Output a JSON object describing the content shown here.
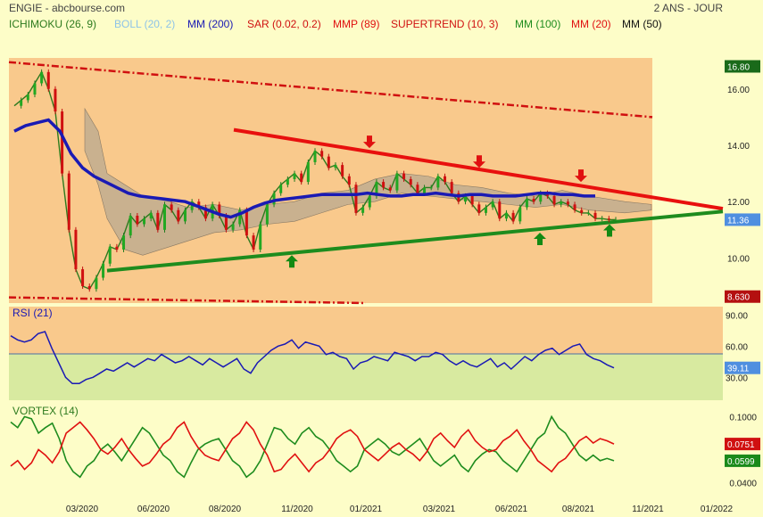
{
  "header": {
    "title": "ENGIE - abcbourse.com",
    "period": "2 ANS - JOUR",
    "indicators": [
      {
        "label": "ICHIMOKU (26, 9)",
        "color": "#2d7a1e"
      },
      {
        "label": "BOLL (20, 2)",
        "color": "#8ec3e8"
      },
      {
        "label": "MM (200)",
        "color": "#1a1ab4"
      },
      {
        "label": "SAR (0.02, 0.2)",
        "color": "#d01010"
      },
      {
        "label": "MMP (89)",
        "color": "#e01010"
      },
      {
        "label": "SUPERTREND (10, 3)",
        "color": "#d01010"
      },
      {
        "label": "MM (100)",
        "color": "#1e8c1e"
      },
      {
        "label": "MM (20)",
        "color": "#e01010"
      },
      {
        "label": "MM (50)",
        "color": "#111111"
      }
    ]
  },
  "chart_data": [
    {
      "type": "line",
      "panel": "price",
      "y_ticks": [
        "16.00",
        "14.00",
        "12.00",
        "10.00"
      ],
      "ylim": [
        8.4,
        17.1
      ],
      "x_ticks": [
        "03/2020",
        "06/2020",
        "08/2020",
        "11/2020",
        "01/2021",
        "03/2021",
        "06/2021",
        "08/2021",
        "11/2021",
        "01/2022"
      ],
      "value_labels": {
        "high": "16.80",
        "last": "11.36",
        "low": "8.630"
      },
      "colors": {
        "up_arrow": "#138a13",
        "down_arrow": "#e01010",
        "resistance": "#e8100e",
        "support": "#1e8c1e",
        "mm200": "#1a1ab4",
        "cloud": "#b8a890",
        "channel": "#d01010"
      },
      "series": [
        {
          "name": "MM (200)",
          "x": [
            0,
            5,
            10,
            20,
            30,
            40,
            50,
            60,
            70,
            80,
            90,
            100,
            110,
            120,
            130,
            140,
            150,
            160,
            170,
            180,
            190,
            200,
            210,
            220,
            230,
            240,
            250,
            260,
            270,
            280,
            290,
            300,
            310,
            320,
            330,
            340,
            350,
            360,
            370,
            380,
            390,
            400,
            410,
            420,
            430,
            440,
            450,
            460,
            470,
            480,
            490,
            500,
            510
          ],
          "values": [
            14.5,
            14.6,
            14.7,
            14.8,
            14.9,
            14.5,
            13.7,
            13.2,
            12.9,
            12.7,
            12.5,
            12.3,
            12.2,
            12.15,
            12.1,
            12.05,
            12.0,
            11.85,
            11.7,
            11.55,
            11.45,
            11.6,
            11.8,
            11.95,
            12.05,
            12.1,
            12.15,
            12.2,
            12.25,
            12.25,
            12.25,
            12.25,
            12.3,
            12.25,
            12.2,
            12.2,
            12.25,
            12.25,
            12.3,
            12.25,
            12.2,
            12.25,
            12.25,
            12.2,
            12.2,
            12.2,
            12.25,
            12.3,
            12.3,
            12.25,
            12.25,
            12.2,
            12.2
          ]
        },
        {
          "name": "Price",
          "x": [
            0,
            6,
            12,
            18,
            24,
            30,
            36,
            42,
            48,
            54,
            60,
            66,
            72,
            78,
            84,
            90,
            96,
            102,
            108,
            114,
            120,
            126,
            132,
            138,
            144,
            150,
            156,
            162,
            168,
            174,
            180,
            186,
            192,
            198,
            204,
            210,
            216,
            222,
            228,
            234,
            240,
            246,
            252,
            258,
            264,
            270,
            276,
            282,
            288,
            294,
            300,
            306,
            312,
            318,
            324,
            330,
            336,
            342,
            348,
            354,
            360,
            366,
            372,
            378,
            384,
            390,
            396,
            402,
            408,
            414,
            420,
            426,
            432,
            438,
            444,
            450,
            456,
            462,
            468,
            474,
            480,
            486,
            492,
            498,
            504,
            510,
            516,
            522,
            528
          ],
          "values": [
            15.4,
            15.6,
            15.8,
            16.2,
            16.6,
            16.0,
            15.2,
            13.0,
            11.0,
            9.6,
            9.0,
            8.9,
            9.3,
            9.8,
            10.4,
            10.3,
            10.8,
            11.5,
            11.2,
            11.4,
            11.6,
            11.0,
            11.9,
            11.7,
            11.3,
            11.7,
            12.0,
            11.8,
            11.4,
            11.9,
            11.5,
            11.0,
            11.2,
            11.7,
            10.8,
            10.3,
            11.2,
            11.9,
            12.3,
            12.6,
            12.8,
            13.0,
            12.7,
            13.4,
            13.8,
            13.6,
            13.2,
            13.3,
            12.9,
            12.6,
            11.6,
            11.8,
            12.2,
            12.7,
            12.5,
            12.4,
            13.0,
            12.8,
            12.6,
            12.3,
            12.5,
            12.5,
            12.9,
            12.7,
            12.3,
            12.0,
            12.2,
            11.9,
            11.6,
            11.8,
            12.0,
            11.4,
            11.6,
            11.3,
            11.8,
            12.1,
            12.0,
            12.3,
            12.2,
            11.9,
            12.0,
            11.9,
            11.7,
            11.6,
            11.6,
            11.4,
            11.4,
            11.36,
            11.36
          ]
        }
      ]
    },
    {
      "type": "line",
      "panel": "rsi",
      "title": "RSI (21)",
      "y_ticks": [
        "90.00",
        "60.00",
        "30.00"
      ],
      "ylim": [
        8,
        98
      ],
      "last_label": "39.11",
      "series": [
        {
          "name": "RSI (21)",
          "values": [
            70,
            66,
            64,
            66,
            72,
            74,
            58,
            44,
            30,
            24,
            24,
            28,
            30,
            34,
            38,
            36,
            40,
            44,
            40,
            44,
            48,
            46,
            52,
            48,
            44,
            46,
            50,
            46,
            42,
            48,
            44,
            40,
            44,
            48,
            38,
            34,
            44,
            50,
            56,
            60,
            62,
            66,
            58,
            64,
            62,
            60,
            52,
            54,
            50,
            48,
            38,
            44,
            46,
            50,
            48,
            46,
            54,
            52,
            50,
            46,
            50,
            50,
            54,
            52,
            46,
            42,
            46,
            42,
            40,
            44,
            48,
            40,
            44,
            38,
            44,
            50,
            46,
            52,
            56,
            58,
            52,
            56,
            60,
            62,
            52,
            48,
            46,
            42,
            39.11
          ]
        }
      ]
    },
    {
      "type": "line",
      "panel": "vortex",
      "title": "VORTEX (14)",
      "y_ticks": [
        "0.1000",
        "0.0400"
      ],
      "ylim": [
        0.025,
        0.11
      ],
      "last_labels": [
        "0.0751",
        "0.0599"
      ],
      "series": [
        {
          "name": "VI+",
          "color": "#1e8c1e",
          "values": [
            0.095,
            0.09,
            0.1,
            0.098,
            0.085,
            0.09,
            0.094,
            0.08,
            0.06,
            0.05,
            0.045,
            0.055,
            0.06,
            0.07,
            0.075,
            0.068,
            0.06,
            0.07,
            0.08,
            0.09,
            0.085,
            0.075,
            0.065,
            0.06,
            0.05,
            0.045,
            0.058,
            0.07,
            0.075,
            0.078,
            0.08,
            0.07,
            0.06,
            0.055,
            0.045,
            0.05,
            0.06,
            0.075,
            0.09,
            0.088,
            0.08,
            0.075,
            0.085,
            0.09,
            0.082,
            0.078,
            0.07,
            0.06,
            0.055,
            0.05,
            0.055,
            0.07,
            0.075,
            0.08,
            0.075,
            0.068,
            0.065,
            0.07,
            0.075,
            0.08,
            0.07,
            0.06,
            0.055,
            0.06,
            0.065,
            0.055,
            0.05,
            0.06,
            0.066,
            0.07,
            0.068,
            0.06,
            0.055,
            0.05,
            0.06,
            0.07,
            0.08,
            0.085,
            0.1,
            0.09,
            0.085,
            0.075,
            0.065,
            0.06,
            0.065,
            0.06,
            0.062,
            0.0599
          ]
        },
        {
          "name": "VI-",
          "color": "#e01010",
          "values": [
            0.055,
            0.06,
            0.052,
            0.058,
            0.07,
            0.065,
            0.058,
            0.068,
            0.085,
            0.09,
            0.095,
            0.088,
            0.08,
            0.07,
            0.066,
            0.072,
            0.08,
            0.07,
            0.062,
            0.055,
            0.058,
            0.066,
            0.075,
            0.08,
            0.09,
            0.095,
            0.082,
            0.072,
            0.065,
            0.062,
            0.06,
            0.07,
            0.08,
            0.085,
            0.095,
            0.088,
            0.075,
            0.065,
            0.05,
            0.052,
            0.06,
            0.066,
            0.058,
            0.05,
            0.058,
            0.062,
            0.07,
            0.08,
            0.085,
            0.088,
            0.082,
            0.07,
            0.065,
            0.06,
            0.066,
            0.072,
            0.076,
            0.07,
            0.066,
            0.06,
            0.068,
            0.08,
            0.085,
            0.078,
            0.072,
            0.082,
            0.088,
            0.078,
            0.072,
            0.068,
            0.07,
            0.078,
            0.082,
            0.088,
            0.078,
            0.07,
            0.06,
            0.055,
            0.05,
            0.058,
            0.062,
            0.07,
            0.078,
            0.082,
            0.076,
            0.08,
            0.078,
            0.0751
          ]
        }
      ]
    }
  ]
}
